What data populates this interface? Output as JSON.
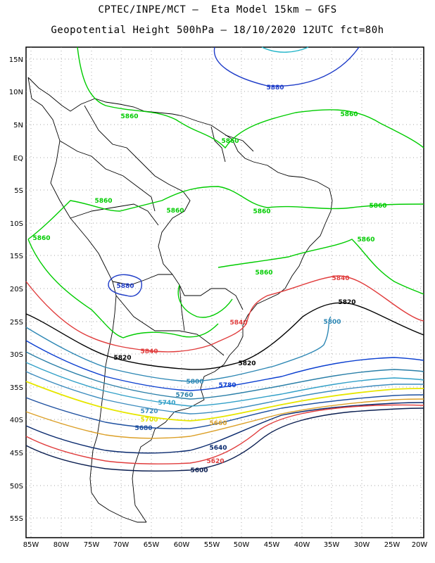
{
  "header": {
    "line1": "CPTEC/INPE/MCT –  Eta Model 15km – GFS",
    "line2": "Geopotential Height 500hPa – 18/10/2020 12UTC fct=80h"
  },
  "axes": {
    "lat_labels": [
      "15N",
      "10N",
      "5N",
      "EQ",
      "5S",
      "10S",
      "15S",
      "20S",
      "25S",
      "30S",
      "35S",
      "40S",
      "45S",
      "50S",
      "55S"
    ],
    "lon_labels": [
      "85W",
      "80W",
      "75W",
      "70W",
      "65W",
      "60W",
      "55W",
      "50W",
      "45W",
      "40W",
      "35W",
      "30W",
      "25W",
      "20W"
    ]
  },
  "colors": {
    "c5880": "#1e3cc8",
    "c5860": "#00cc00",
    "c5840": "#e03c3c",
    "c5820": "#000000",
    "c5800": "#2d87b4",
    "c5780": "#0b3fd0",
    "c5760": "#2a7fa8",
    "c5740": "#32a0c8",
    "c5720": "#3c8cbe",
    "c5700": "#e6e600",
    "c5680": "#1e50a0",
    "c5660": "#dca028",
    "c5640": "#0a2a6e",
    "c5620": "#e03c3c",
    "c5600": "#0a1e50",
    "c5900": "#20b4c8"
  },
  "contour_labels": [
    {
      "text": "5880",
      "color": "#1e3cc8"
    },
    {
      "text": "5860",
      "color": "#00cc00"
    },
    {
      "text": "5860",
      "color": "#00cc00"
    },
    {
      "text": "5860",
      "color": "#00cc00"
    },
    {
      "text": "5860",
      "color": "#00cc00"
    },
    {
      "text": "5860",
      "color": "#00cc00"
    },
    {
      "text": "5860",
      "color": "#00cc00"
    },
    {
      "text": "5860",
      "color": "#00cc00"
    },
    {
      "text": "5860",
      "color": "#00cc00"
    },
    {
      "text": "5860",
      "color": "#00cc00"
    },
    {
      "text": "5880",
      "color": "#1e3cc8"
    },
    {
      "text": "5860",
      "color": "#00cc00"
    },
    {
      "text": "5840",
      "color": "#e03c3c"
    },
    {
      "text": "5840",
      "color": "#e03c3c"
    },
    {
      "text": "5840",
      "color": "#e03c3c"
    },
    {
      "text": "5820",
      "color": "#000000"
    },
    {
      "text": "5820",
      "color": "#000000"
    },
    {
      "text": "5820",
      "color": "#000000"
    },
    {
      "text": "5800",
      "color": "#2d87b4"
    },
    {
      "text": "5800",
      "color": "#2d87b4"
    },
    {
      "text": "5780",
      "color": "#0b3fd0"
    },
    {
      "text": "5760",
      "color": "#2a7fa8"
    },
    {
      "text": "5740",
      "color": "#32a0c8"
    },
    {
      "text": "5720",
      "color": "#3c8cbe"
    },
    {
      "text": "5700",
      "color": "#e6e600"
    },
    {
      "text": "5680",
      "color": "#1e50a0"
    },
    {
      "text": "5660",
      "color": "#dca028"
    },
    {
      "text": "5640",
      "color": "#0a2a6e"
    },
    {
      "text": "5620",
      "color": "#e03c3c"
    },
    {
      "text": "5600",
      "color": "#0a1e50"
    }
  ]
}
